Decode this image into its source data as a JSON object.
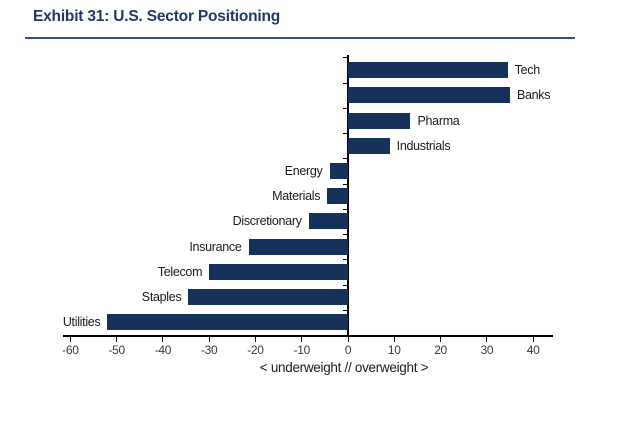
{
  "page": {
    "title": "Exhibit 31: U.S. Sector Positioning"
  },
  "colors": {
    "bar_fill": "#16325b",
    "title_text": "#1f3864",
    "title_rule": "#2d5486",
    "axis_line": "#000000",
    "tick_label": "#39393c",
    "category_label": "#1a1a1a",
    "background": "#ffffff"
  },
  "chart_data": {
    "type": "bar",
    "orientation": "horizontal",
    "title": "Exhibit 31: U.S. Sector Positioning",
    "categories": [
      "Tech",
      "Banks",
      "Pharma",
      "Industrials",
      "Energy",
      "Materials",
      "Discretionary",
      "Insurance",
      "Telecom",
      "Staples",
      "Utilities"
    ],
    "values": [
      34.5,
      35,
      13.5,
      9,
      -4,
      -4.5,
      -8.5,
      -21.5,
      -30,
      -34.5,
      -52
    ],
    "xlabel": "< underweight // overweight >",
    "xticks": [
      -60,
      -50,
      -40,
      -30,
      -20,
      -10,
      0,
      10,
      20,
      30,
      40
    ],
    "xlim": [
      -61.6,
      44.3
    ],
    "grid": false,
    "legend": null,
    "bar_label_position": "outside-end"
  }
}
